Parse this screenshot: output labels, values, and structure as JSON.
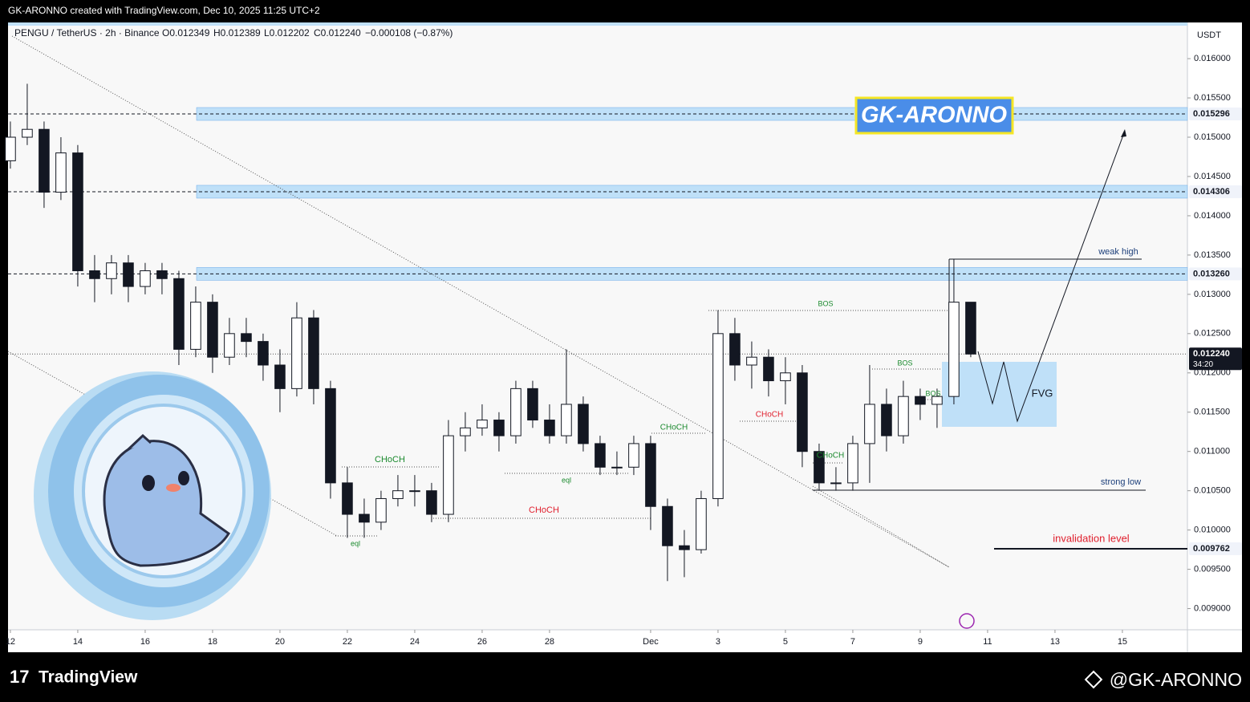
{
  "header": {
    "credit": "GK-ARONNO created with TradingView.com, Dec 10, 2025 11:25 UTC+2"
  },
  "legend": {
    "symbol": "PENGU / TetherUS · 2h · Binance",
    "open": "O0.012349",
    "high": "H0.012389",
    "low": "L0.012202",
    "close": "C0.012240",
    "change": "−0.000108 (−0.87%)"
  },
  "footer": {
    "brand": "TradingView",
    "author": "@GK-ARONNO"
  },
  "watermark": "GK-ARONNO",
  "chart_data": {
    "type": "candlestick",
    "currency": "USDT",
    "up_color": "#ffffff",
    "down_color": "#131722",
    "x": [
      0,
      0.5,
      1,
      1.5,
      2,
      2.5,
      3,
      3.5,
      4,
      4.5,
      5,
      5.5,
      6,
      6.5,
      7,
      7.5,
      8,
      8.5,
      9,
      9.5,
      10,
      10.5,
      11,
      11.5,
      12,
      12.5,
      13,
      13.5,
      14,
      14.5,
      15,
      15.5,
      16,
      16.5,
      17,
      17.5,
      18,
      18.5,
      19,
      19.5,
      20,
      20.5,
      21,
      21.5,
      22,
      22.5,
      23,
      23.5,
      24,
      24.5,
      25,
      25.5,
      26,
      26.5,
      27,
      27.5,
      28,
      28.5
    ],
    "open": [
      0.0147,
      0.015,
      0.0151,
      0.0143,
      0.0148,
      0.0133,
      0.0132,
      0.0134,
      0.0131,
      0.0133,
      0.0132,
      0.0123,
      0.0129,
      0.0122,
      0.0125,
      0.0124,
      0.0121,
      0.0118,
      0.0127,
      0.0118,
      0.0106,
      0.0102,
      0.0101,
      0.0104,
      0.0105,
      0.0105,
      0.0102,
      0.0112,
      0.0113,
      0.0114,
      0.0112,
      0.0118,
      0.0114,
      0.0112,
      0.0116,
      0.0111,
      0.0108,
      0.0108,
      0.0111,
      0.0103,
      0.0098,
      0.00975,
      0.0104,
      0.0125,
      0.0121,
      0.0122,
      0.0119,
      0.012,
      0.011,
      0.0106,
      0.0106,
      0.0111,
      0.0116,
      0.0112,
      0.0117,
      0.0116,
      0.0117,
      0.0129
    ],
    "high": [
      0.0152,
      0.01568,
      0.0152,
      0.015,
      0.0149,
      0.0135,
      0.0135,
      0.0135,
      0.0134,
      0.0134,
      0.0133,
      0.0131,
      0.013,
      0.0127,
      0.0127,
      0.0125,
      0.0123,
      0.0129,
      0.0128,
      0.0119,
      0.0108,
      0.0104,
      0.0105,
      0.0107,
      0.0107,
      0.0106,
      0.0114,
      0.0115,
      0.0116,
      0.0115,
      0.0119,
      0.0119,
      0.0116,
      0.0123,
      0.0117,
      0.0112,
      0.011,
      0.0112,
      0.0112,
      0.0104,
      0.01,
      0.0105,
      0.0128,
      0.0127,
      0.0124,
      0.0123,
      0.0122,
      0.0121,
      0.0111,
      0.0108,
      0.0112,
      0.0121,
      0.0118,
      0.0119,
      0.0118,
      0.0118,
      0.01345,
      0.0129
    ],
    "low": [
      0.0146,
      0.0149,
      0.0141,
      0.0142,
      0.0131,
      0.0129,
      0.013,
      0.0129,
      0.013,
      0.013,
      0.0121,
      0.0122,
      0.012,
      0.0121,
      0.0122,
      0.0119,
      0.0115,
      0.0117,
      0.0116,
      0.0104,
      0.0099,
      0.0099,
      0.01,
      0.0103,
      0.0103,
      0.0101,
      0.0101,
      0.011,
      0.0112,
      0.011,
      0.0111,
      0.0113,
      0.0111,
      0.0111,
      0.011,
      0.0107,
      0.0107,
      0.0107,
      0.01,
      0.00935,
      0.0094,
      0.0097,
      0.0103,
      0.0119,
      0.0118,
      0.0117,
      0.0116,
      0.0108,
      0.0105,
      0.0105,
      0.0105,
      0.0106,
      0.011,
      0.0111,
      0.0114,
      0.0113,
      0.0116,
      0.0122
    ],
    "close": [
      0.015,
      0.0151,
      0.0143,
      0.0148,
      0.0133,
      0.0132,
      0.0134,
      0.0131,
      0.0133,
      0.0132,
      0.0123,
      0.0129,
      0.0122,
      0.0125,
      0.0124,
      0.0121,
      0.0118,
      0.0127,
      0.0118,
      0.0106,
      0.0102,
      0.0101,
      0.0104,
      0.0105,
      0.0105,
      0.0102,
      0.0112,
      0.0113,
      0.0114,
      0.0112,
      0.0118,
      0.0114,
      0.0112,
      0.0116,
      0.0111,
      0.0108,
      0.0108,
      0.0111,
      0.0103,
      0.0098,
      0.00975,
      0.0104,
      0.0125,
      0.0121,
      0.0122,
      0.0119,
      0.012,
      0.011,
      0.0106,
      0.0106,
      0.0111,
      0.0116,
      0.0112,
      0.0117,
      0.0116,
      0.0117,
      0.0129,
      0.01224
    ],
    "xlim": [
      -0.07,
      34.93
    ],
    "xticks": [
      {
        "value": 0,
        "label": "12"
      },
      {
        "value": 2,
        "label": "14"
      },
      {
        "value": 4,
        "label": "16"
      },
      {
        "value": 6,
        "label": "18"
      },
      {
        "value": 8,
        "label": "20"
      },
      {
        "value": 10,
        "label": "22"
      },
      {
        "value": 12,
        "label": "24"
      },
      {
        "value": 14,
        "label": "26"
      },
      {
        "value": 16,
        "label": "28"
      },
      {
        "value": 19,
        "label": "Dec"
      },
      {
        "value": 21,
        "label": "3"
      },
      {
        "value": 23,
        "label": "5"
      },
      {
        "value": 25,
        "label": "7"
      },
      {
        "value": 27,
        "label": "9"
      },
      {
        "value": 29,
        "label": "11"
      },
      {
        "value": 31,
        "label": "13"
      },
      {
        "value": 33,
        "label": "15"
      }
    ],
    "ylim": [
      0.00873,
      0.01644
    ],
    "yticks": [
      {
        "value": 0.009,
        "label": "0.009000"
      },
      {
        "value": 0.0095,
        "label": "0.009500"
      },
      {
        "value": 0.01,
        "label": "0.010000"
      },
      {
        "value": 0.0105,
        "label": "0.010500"
      },
      {
        "value": 0.011,
        "label": "0.011000"
      },
      {
        "value": 0.0115,
        "label": "0.011500"
      },
      {
        "value": 0.012,
        "label": "0.012000"
      },
      {
        "value": 0.0125,
        "label": "0.012500"
      },
      {
        "value": 0.013,
        "label": "0.013000"
      },
      {
        "value": 0.0135,
        "label": "0.013500"
      },
      {
        "value": 0.014,
        "label": "0.014000"
      },
      {
        "value": 0.0145,
        "label": "0.014500"
      },
      {
        "value": 0.015,
        "label": "0.015000"
      },
      {
        "value": 0.0155,
        "label": "0.015500"
      },
      {
        "value": 0.016,
        "label": "0.016000"
      }
    ],
    "zones": [
      0.015296,
      0.014306,
      {
        "value": 0.01326,
        "label": "0.013260"
      }
    ],
    "invalidation": 0.009762,
    "last_price": {
      "value": 0.01224,
      "label": "0.012240"
    },
    "countdown": "34:20",
    "annotations": [
      "weak high",
      "BOS",
      "BOS",
      "BOS",
      "CHoCH",
      "eql",
      "eql",
      "CHoCH",
      "CHoCH",
      "CHoCH",
      "CHoCH",
      "FVG",
      "strong low",
      "invalidation level"
    ]
  }
}
